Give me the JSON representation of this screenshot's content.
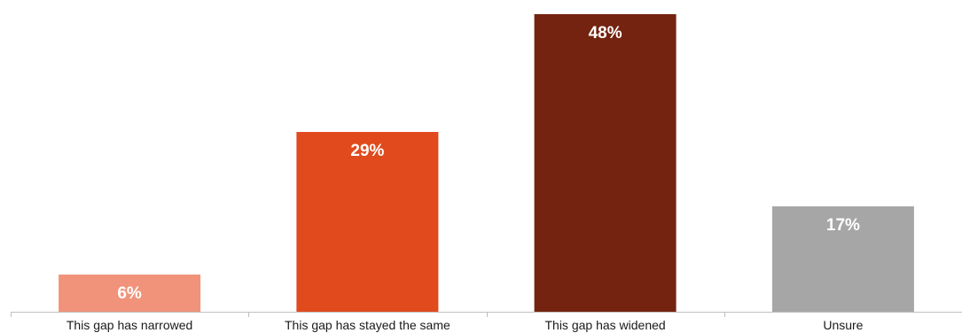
{
  "chart_data": {
    "type": "bar",
    "title": "",
    "xlabel": "",
    "ylabel": "",
    "ylim": [
      0,
      50
    ],
    "grid": false,
    "categories": [
      "This gap has narrowed",
      "This gap has stayed the same",
      "This gap has widened",
      "Unsure"
    ],
    "values": [
      6,
      29,
      48,
      17
    ],
    "data_labels": [
      "6%",
      "29%",
      "48%",
      "17%"
    ],
    "colors": [
      "#F0937A",
      "#E04A1C",
      "#73230F",
      "#A6A6A6"
    ],
    "label_color": "#FFFFFF",
    "axis_color": "#BFBFBF"
  }
}
